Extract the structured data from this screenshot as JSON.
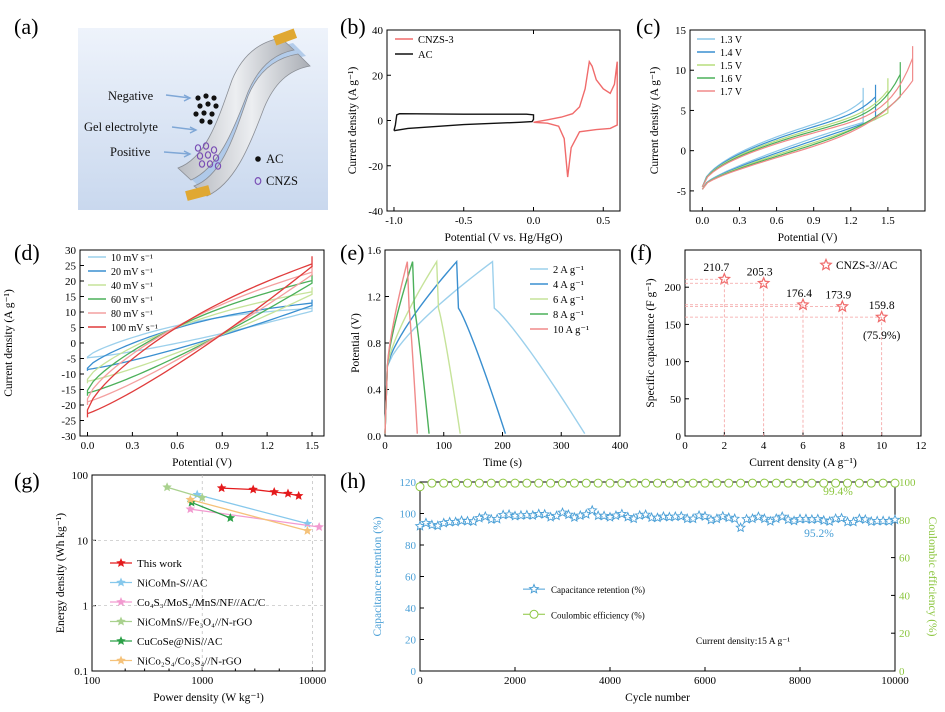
{
  "panel_labels": [
    "(a)",
    "(b)",
    "(c)",
    "(d)",
    "(e)",
    "(f)",
    "(g)",
    "(h)"
  ],
  "schematic": {
    "negative": "Negative",
    "gel": "Gel electrolyte",
    "positive": "Positive",
    "legend_ac": "AC",
    "legend_cnzs": "CNZS",
    "colors": {
      "electrode_tab": "#e0a832",
      "dot_black": "#111111",
      "dot_purple": "#7a4fb5",
      "separator": "#a9c6e8"
    }
  },
  "chart_data": [
    {
      "id": "b",
      "type": "line",
      "xlabel": "Potential (V vs. Hg/HgO)",
      "ylabel": "Current density (A g⁻¹)",
      "xlim": [
        -1.05,
        0.62
      ],
      "ylim": [
        -40,
        40
      ],
      "xticks": [
        "-1.0",
        "-0.5",
        "0.0",
        "0.5"
      ],
      "xtickvals": [
        -1.0,
        -0.5,
        0.0,
        0.5
      ],
      "yticks": [
        "-40",
        "-20",
        "0",
        "20",
        "40"
      ],
      "ytickvals": [
        -40,
        -20,
        0,
        20,
        40
      ],
      "legend": "top-left",
      "series": [
        {
          "name": "CNZS-3",
          "color": "#f06b6b",
          "closed": true,
          "points": [
            [
              0.0,
              -0.8
            ],
            [
              0.1,
              -1.2
            ],
            [
              0.18,
              -2.5
            ],
            [
              0.22,
              -8
            ],
            [
              0.245,
              -25
            ],
            [
              0.27,
              -12
            ],
            [
              0.33,
              -5
            ],
            [
              0.45,
              -4
            ],
            [
              0.55,
              -3.5
            ],
            [
              0.6,
              -2
            ],
            [
              0.6,
              26
            ],
            [
              0.58,
              16
            ],
            [
              0.55,
              12
            ],
            [
              0.5,
              14
            ],
            [
              0.45,
              18
            ],
            [
              0.42,
              24
            ],
            [
              0.4,
              26
            ],
            [
              0.37,
              14
            ],
            [
              0.33,
              6
            ],
            [
              0.28,
              3
            ],
            [
              0.2,
              1.5
            ],
            [
              0.1,
              0.3
            ],
            [
              0.0,
              -0.8
            ]
          ]
        },
        {
          "name": "AC",
          "color": "#111111",
          "closed": true,
          "points": [
            [
              -1.0,
              -4.5
            ],
            [
              -0.99,
              -2
            ],
            [
              -0.98,
              2.5
            ],
            [
              -0.96,
              3
            ],
            [
              -0.5,
              2.8
            ],
            [
              -0.05,
              2.8
            ],
            [
              0.0,
              2.5
            ],
            [
              0.0,
              0.5
            ],
            [
              -0.01,
              -0.5
            ],
            [
              -0.1,
              -0.8
            ],
            [
              -0.5,
              -1.8
            ],
            [
              -0.9,
              -3.5
            ],
            [
              -1.0,
              -4.5
            ]
          ]
        }
      ]
    },
    {
      "id": "c",
      "type": "line",
      "xlabel": "Potential (V)",
      "ylabel": "Current density (A g⁻¹)",
      "xlim": [
        -0.1,
        1.8
      ],
      "ylim": [
        -7.5,
        15
      ],
      "xticks": [
        "0.0",
        "0.3",
        "0.6",
        "0.9",
        "1.2",
        "1.5"
      ],
      "xtickvals": [
        0,
        0.3,
        0.6,
        0.9,
        1.2,
        1.5
      ],
      "yticks": [
        "-5",
        "0",
        "5",
        "10",
        "15"
      ],
      "ytickvals": [
        -5,
        0,
        5,
        10,
        15
      ],
      "legend": "top-left",
      "series": [
        {
          "name": "1.3 V",
          "color": "#8cc7e8",
          "vmax": 1.3,
          "imax": 7.8
        },
        {
          "name": "1.4 V",
          "color": "#3a8fd0",
          "vmax": 1.4,
          "imax": 8.2
        },
        {
          "name": "1.5 V",
          "color": "#b7dd7d",
          "vmax": 1.5,
          "imax": 9.0
        },
        {
          "name": "1.6 V",
          "color": "#4cb05a",
          "vmax": 1.6,
          "imax": 11.0
        },
        {
          "name": "1.7 V",
          "color": "#f08a8a",
          "vmax": 1.7,
          "imax": 13.0
        }
      ]
    },
    {
      "id": "d",
      "type": "line",
      "xlabel": "Potential (V)",
      "ylabel": "Current density (A g⁻¹)",
      "xlim": [
        -0.05,
        1.58
      ],
      "ylim": [
        -30,
        30
      ],
      "xticks": [
        "0.0",
        "0.3",
        "0.6",
        "0.9",
        "1.2",
        "1.5"
      ],
      "xtickvals": [
        0,
        0.3,
        0.6,
        0.9,
        1.2,
        1.5
      ],
      "yticks": [
        "-30",
        "-25",
        "-20",
        "-15",
        "-10",
        "-5",
        "0",
        "5",
        "10",
        "15",
        "20",
        "25",
        "30"
      ],
      "ytickvals": [
        -30,
        -25,
        -20,
        -15,
        -10,
        -5,
        0,
        5,
        10,
        15,
        20,
        25,
        30
      ],
      "legend": "top-left",
      "series": [
        {
          "name": "10 mV s⁻¹",
          "color": "#9cd0ec",
          "imax": 12,
          "imin": -5
        },
        {
          "name": "20 mV s⁻¹",
          "color": "#3a8fd0",
          "imax": 14,
          "imin": -9
        },
        {
          "name": "40 mV s⁻¹",
          "color": "#c6e39a",
          "imax": 18,
          "imin": -13
        },
        {
          "name": "60 mV s⁻¹",
          "color": "#4cb05a",
          "imax": 22,
          "imin": -17
        },
        {
          "name": "80 mV s⁻¹",
          "color": "#f4a0a0",
          "imax": 25,
          "imin": -20
        },
        {
          "name": "100 mV s⁻¹",
          "color": "#e03c3c",
          "imax": 28,
          "imin": -24
        }
      ]
    },
    {
      "id": "e",
      "type": "line",
      "xlabel": "Time (s)",
      "ylabel": "Potential (V)",
      "xlim": [
        0,
        400
      ],
      "ylim": [
        0,
        1.6
      ],
      "xticks": [
        "0",
        "100",
        "200",
        "300",
        "400"
      ],
      "xtickvals": [
        0,
        100,
        200,
        300,
        400
      ],
      "yticks": [
        "0.0",
        "0.4",
        "0.8",
        "1.2",
        "1.6"
      ],
      "ytickvals": [
        0,
        0.4,
        0.8,
        1.2,
        1.6
      ],
      "legend": "right",
      "series": [
        {
          "name": "2 A g⁻¹",
          "color": "#9cd0ec",
          "tpeak": 183,
          "tend": 340
        },
        {
          "name": "4 A g⁻¹",
          "color": "#3a8fd0",
          "tpeak": 122,
          "tend": 205
        },
        {
          "name": "6 A g⁻¹",
          "color": "#c6e39a",
          "tpeak": 88,
          "tend": 128
        },
        {
          "name": "8 A g⁻¹",
          "color": "#4cb05a",
          "tpeak": 47,
          "tend": 75
        },
        {
          "name": "10 A g⁻¹",
          "color": "#f08a8a",
          "tpeak": 38,
          "tend": 55
        }
      ]
    },
    {
      "id": "f",
      "type": "scatter",
      "xlabel": "Current density (A g⁻¹)",
      "ylabel": "Specific capacitance (F g⁻¹)",
      "xlim": [
        0,
        12
      ],
      "ylim": [
        0,
        250
      ],
      "xticks": [
        "0",
        "2",
        "4",
        "6",
        "8",
        "10",
        "12"
      ],
      "xtickvals": [
        0,
        2,
        4,
        6,
        8,
        10,
        12
      ],
      "yticks": [
        "0",
        "50",
        "100",
        "150",
        "200"
      ],
      "ytickvals": [
        0,
        50,
        100,
        150,
        200
      ],
      "legend": "top-right",
      "series": [
        {
          "name": "CNZS-3//AC",
          "color": "#f06b6b",
          "points": [
            [
              2,
              210.7
            ],
            [
              4,
              205.3
            ],
            [
              6,
              176.4
            ],
            [
              8,
              173.9
            ],
            [
              10,
              159.8
            ]
          ],
          "labels": [
            "210.7",
            "205.3",
            "176.4",
            "173.9",
            "159.8"
          ]
        }
      ],
      "annotation": "(75.9%)"
    },
    {
      "id": "g",
      "type": "line",
      "xlabel": "Power density (W kg⁻¹)",
      "ylabel": "Energy density (Wh kg⁻¹)",
      "xscale": "log",
      "yscale": "log",
      "xlim": [
        100,
        13000
      ],
      "ylim": [
        0.1,
        100
      ],
      "xticks": [
        "100",
        "1000",
        "10000"
      ],
      "xtickvals": [
        100,
        1000,
        10000
      ],
      "yticks": [
        "0.1",
        "1",
        "10",
        "100"
      ],
      "ytickvals": [
        0.1,
        1,
        10,
        100
      ],
      "legend": "bottom-left",
      "series": [
        {
          "name": "This work",
          "color": "#e41a1c",
          "points": [
            [
              1500,
              63
            ],
            [
              2900,
              60
            ],
            [
              4500,
              55
            ],
            [
              6000,
              52
            ],
            [
              7500,
              48
            ]
          ]
        },
        {
          "name": "NiCoMn-S//AC",
          "color": "#86c8ec",
          "points": [
            [
              900,
              50
            ],
            [
              9000,
              18
            ]
          ]
        },
        {
          "name": "Co₄S₃/MoS₂/MnS/NF//AC/C",
          "color": "#f29ad0",
          "points": [
            [
              780,
              30
            ],
            [
              11500,
              16
            ]
          ]
        },
        {
          "name": "NiCoMnS//Fe₃O₄//N-rGO",
          "color": "#a9d18e",
          "points": [
            [
              480,
              65
            ],
            [
              1000,
              45
            ]
          ]
        },
        {
          "name": "CuCoSe@NiS//AC",
          "color": "#2ca048",
          "points": [
            [
              800,
              38
            ],
            [
              1800,
              22
            ]
          ]
        },
        {
          "name": "NiCo₂S₄/Co₃S₄//N-rGO",
          "color": "#f5c27a",
          "points": [
            [
              780,
              42
            ],
            [
              9000,
              14
            ]
          ]
        }
      ]
    },
    {
      "id": "h",
      "type": "line",
      "xlabel": "Cycle number",
      "ylabel": "Capacitance retention (%)",
      "y2label": "Coulombic efficiency (%)",
      "xlim": [
        0,
        10000
      ],
      "ylim": [
        0,
        120
      ],
      "y2lim": [
        0,
        100
      ],
      "xticks": [
        "0",
        "2000",
        "4000",
        "6000",
        "8000",
        "10000"
      ],
      "xtickvals": [
        0,
        2000,
        4000,
        6000,
        8000,
        10000
      ],
      "yticks": [
        "0",
        "20",
        "40",
        "60",
        "80",
        "100",
        "120"
      ],
      "ytickvals": [
        0,
        20,
        40,
        60,
        80,
        100,
        120
      ],
      "y2ticks": [
        "0",
        "20",
        "40",
        "60",
        "80",
        "100"
      ],
      "y2tickvals": [
        0,
        20,
        40,
        60,
        80,
        100
      ],
      "legend": "center-left",
      "series": [
        {
          "name": "Capacitance retention (%)",
          "color": "#4a9fd6",
          "axis": "left",
          "start": 92,
          "mid": 99,
          "end": 95.2
        },
        {
          "name": "Coulombic efficiency (%)",
          "color": "#8cc63f",
          "axis": "right",
          "value": 99.4
        }
      ],
      "annotations": {
        "ce_end": "99.4%",
        "cr_end": "95.2%",
        "current": "Current density:15 A g⁻¹"
      }
    }
  ]
}
